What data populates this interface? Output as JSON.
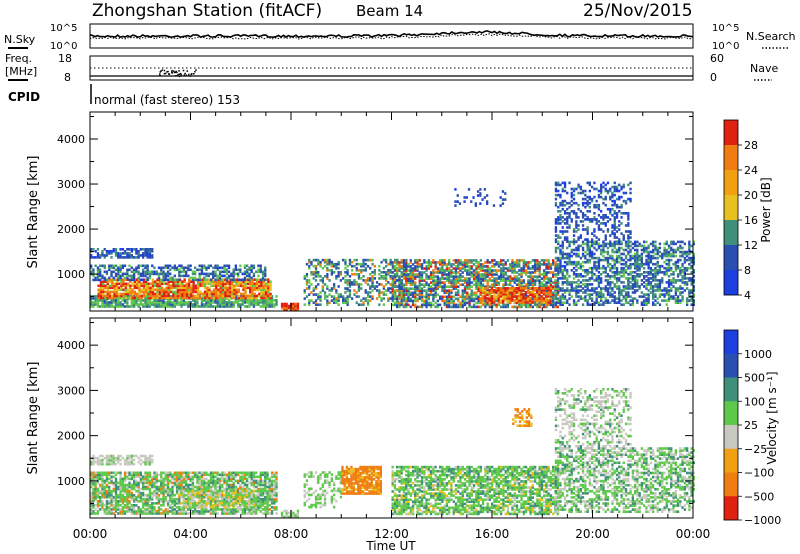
{
  "header": {
    "station": "Zhongshan Station (fitACF)",
    "beam": "Beam 14",
    "date": "25/Nov/2015"
  },
  "top_panel": {
    "left_label": "N.Sky",
    "right_label": "N.Search",
    "left_ticks": [
      "10^5",
      "10^0"
    ],
    "right_ticks": [
      "10^5",
      "10^0"
    ]
  },
  "freq_panel": {
    "left_label_1": "Freq.",
    "left_label_2": "[MHz]",
    "right_label": "Nave",
    "left_ticks": [
      "18",
      "8"
    ],
    "right_ticks": [
      "60",
      "0"
    ]
  },
  "cpid": {
    "label": "CPID",
    "text": "normal (fast stereo) 153"
  },
  "x_axis": {
    "title": "Time UT",
    "ticks": [
      "00:00",
      "04:00",
      "08:00",
      "12:00",
      "16:00",
      "20:00",
      "00:00"
    ]
  },
  "colors": {
    "blue": "#1c3fe0",
    "darkblue": "#2b4fb0",
    "teal": "#3f8f7a",
    "green": "#5ec84a",
    "yellow": "#e8c020",
    "orange": "#f07d10",
    "red": "#e02010",
    "grey": "#c8c8c0"
  },
  "chart_data": [
    {
      "type": "heatmap",
      "title": "",
      "xlabel": "",
      "ylabel": "Slant Range [km]",
      "xlim": [
        0,
        24
      ],
      "ylim": [
        180,
        4600
      ],
      "yticks": [
        "1000",
        "2000",
        "3000",
        "4000"
      ],
      "colorbar": {
        "label": "Power [dB]",
        "ticks": [
          "28",
          "24",
          "20",
          "16",
          "12",
          "8",
          "4"
        ],
        "colors": [
          "#e02010",
          "#f07d10",
          "#f0a010",
          "#e8c020",
          "#3f8f7a",
          "#2b4fb0",
          "#1c3fe0"
        ]
      },
      "regions": [
        {
          "t0": 0.0,
          "t1": 7.5,
          "r0": 300,
          "r1": 1000,
          "level": "mixed-high"
        },
        {
          "t0": 7.5,
          "t1": 8.0,
          "r0": 180,
          "r1": 300,
          "level": "high"
        },
        {
          "t0": 8.5,
          "t1": 12.5,
          "r0": 500,
          "r1": 1300,
          "level": "mixed-low"
        },
        {
          "t0": 12.0,
          "t1": 18.5,
          "r0": 300,
          "r1": 1300,
          "level": "mixed-high"
        },
        {
          "t0": 18.5,
          "t1": 24.0,
          "r0": 300,
          "r1": 3000,
          "level": "low"
        }
      ]
    },
    {
      "type": "heatmap",
      "title": "",
      "xlabel": "Time UT",
      "ylabel": "Slant Range [km]",
      "xlim": [
        0,
        24
      ],
      "ylim": [
        180,
        4600
      ],
      "yticks": [
        "1000",
        "2000",
        "3000",
        "4000"
      ],
      "colorbar": {
        "label": "Velocity [m s⁻¹]",
        "ticks": [
          "1000",
          "500",
          "100",
          "25",
          "−25",
          "−100",
          "−500",
          "−1000"
        ],
        "colors": [
          "#1c3fe0",
          "#2b4fb0",
          "#3f8f7a",
          "#5ec84a",
          "#c8c8c0",
          "#f0a010",
          "#f07d10",
          "#e02010"
        ]
      },
      "regions": [
        {
          "t0": 0.0,
          "t1": 7.5,
          "r0": 300,
          "r1": 1500,
          "level": "green"
        },
        {
          "t0": 10.0,
          "t1": 11.5,
          "r0": 700,
          "r1": 1300,
          "level": "orange"
        },
        {
          "t0": 12.0,
          "t1": 18.5,
          "r0": 300,
          "r1": 1300,
          "level": "green"
        },
        {
          "t0": 18.5,
          "t1": 24.0,
          "r0": 300,
          "r1": 3000,
          "level": "grey-green"
        }
      ]
    }
  ]
}
